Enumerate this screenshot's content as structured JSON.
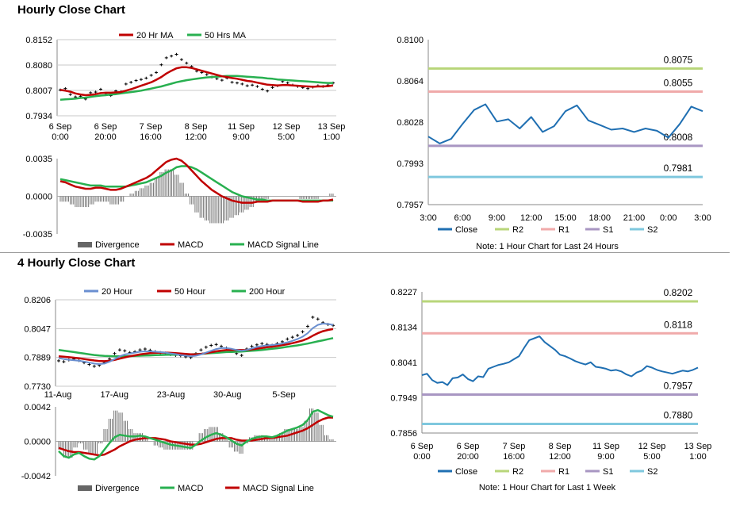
{
  "sections": [
    {
      "title": "Hourly Close Chart"
    },
    {
      "title": "4 Hourly Close Chart"
    }
  ],
  "chart_data": [
    {
      "id": "hourly-price",
      "type": "line",
      "ylim": [
        0.7934,
        0.8152
      ],
      "y_ticks": [
        "0.8152",
        "0.8080",
        "0.8007",
        "0.7934"
      ],
      "x_ticks": [
        [
          "6 Sep",
          "0:00"
        ],
        [
          "6 Sep",
          "20:00"
        ],
        [
          "7 Sep",
          "16:00"
        ],
        [
          "8 Sep",
          "12:00"
        ],
        [
          "11 Sep",
          "9:00"
        ],
        [
          "12 Sep",
          "5:00"
        ],
        [
          "13 Sep",
          "1:00"
        ]
      ],
      "legend": [
        "20 Hr MA",
        "50 Hrs MA"
      ],
      "colors": {
        "price": "#000000",
        "ma_a": "#c00000",
        "ma_b": "#28b050"
      },
      "price": [
        0.8008,
        0.8012,
        0.7995,
        0.7988,
        0.799,
        0.7982,
        0.8,
        0.8002,
        0.801,
        0.7998,
        0.7992,
        0.8005,
        0.8003,
        0.8025,
        0.803,
        0.8035,
        0.8038,
        0.8042,
        0.805,
        0.8058,
        0.808,
        0.81,
        0.8105,
        0.811,
        0.8095,
        0.8085,
        0.8075,
        0.8062,
        0.8058,
        0.8052,
        0.8045,
        0.804,
        0.8036,
        0.8042,
        0.803,
        0.8028,
        0.8025,
        0.802,
        0.8022,
        0.8018,
        0.801,
        0.8005,
        0.8015,
        0.802,
        0.8032,
        0.8028,
        0.8022,
        0.8018,
        0.8015,
        0.8012,
        0.8016,
        0.802,
        0.8018,
        0.8022,
        0.8028
      ],
      "ma_a": [
        0.8008,
        0.8006,
        0.8003,
        0.7998,
        0.7995,
        0.7993,
        0.7994,
        0.7996,
        0.7999,
        0.8,
        0.8,
        0.8001,
        0.8002,
        0.8006,
        0.801,
        0.8015,
        0.802,
        0.8025,
        0.803,
        0.8037,
        0.8045,
        0.8055,
        0.8063,
        0.807,
        0.8073,
        0.8073,
        0.8071,
        0.8067,
        0.8063,
        0.8059,
        0.8055,
        0.8051,
        0.8047,
        0.8045,
        0.8042,
        0.804,
        0.8037,
        0.8034,
        0.8032,
        0.8029,
        0.8026,
        0.8023,
        0.8022,
        0.8021,
        0.8022,
        0.8022,
        0.8021,
        0.802,
        0.8019,
        0.8018,
        0.8017,
        0.8018,
        0.8018,
        0.8019,
        0.8021
      ],
      "ma_b": [
        0.798,
        0.7981,
        0.7982,
        0.7983,
        0.7985,
        0.7986,
        0.7988,
        0.799,
        0.7992,
        0.7993,
        0.7995,
        0.7996,
        0.7998,
        0.8,
        0.8002,
        0.8004,
        0.8006,
        0.8009,
        0.8012,
        0.8015,
        0.8018,
        0.8022,
        0.8026,
        0.803,
        0.8033,
        0.8036,
        0.8038,
        0.804,
        0.8042,
        0.8044,
        0.8045,
        0.8046,
        0.8047,
        0.8048,
        0.8048,
        0.8048,
        0.8047,
        0.8046,
        0.8045,
        0.8044,
        0.8043,
        0.8041,
        0.804,
        0.8038,
        0.8037,
        0.8036,
        0.8035,
        0.8034,
        0.8033,
        0.8032,
        0.8031,
        0.803,
        0.8029,
        0.8028,
        0.8028
      ]
    },
    {
      "id": "hourly-macd",
      "type": "line",
      "ylim": [
        -0.0035,
        0.0035
      ],
      "y_ticks": [
        "0.0035",
        "0.0000",
        "-0.0035"
      ],
      "legend": [
        "Divergence",
        "MACD",
        "MACD Signal Line"
      ],
      "colors": {
        "bars": "#555555",
        "macd": "#c00000",
        "signal": "#28b050"
      },
      "macd": [
        0.0014,
        0.0013,
        0.0011,
        0.0009,
        0.0008,
        0.0007,
        0.0007,
        0.0008,
        0.0008,
        0.0007,
        0.0006,
        0.0006,
        0.0007,
        0.0009,
        0.0011,
        0.0013,
        0.0015,
        0.0017,
        0.002,
        0.0024,
        0.0028,
        0.0032,
        0.0034,
        0.0035,
        0.0033,
        0.0029,
        0.0024,
        0.0019,
        0.0014,
        0.001,
        0.0006,
        0.0003,
        0.0,
        -0.0002,
        -0.0004,
        -0.0005,
        -0.0006,
        -0.0006,
        -0.0006,
        -0.0005,
        -0.0005,
        -0.0005,
        -0.0004,
        -0.0004,
        -0.0004,
        -0.0004,
        -0.0004,
        -0.0004,
        -0.0005,
        -0.0005,
        -0.0005,
        -0.0005,
        -0.0004,
        -0.0004,
        -0.0003
      ],
      "signal": [
        0.0016,
        0.0015,
        0.0014,
        0.0013,
        0.0012,
        0.0011,
        0.001,
        0.001,
        0.001,
        0.0009,
        0.0009,
        0.0009,
        0.0009,
        0.0009,
        0.001,
        0.0011,
        0.0012,
        0.0013,
        0.0015,
        0.0017,
        0.0019,
        0.0022,
        0.0024,
        0.0027,
        0.0028,
        0.0028,
        0.0027,
        0.0025,
        0.0022,
        0.0019,
        0.0016,
        0.0013,
        0.001,
        0.0007,
        0.0004,
        0.0002,
        0.0,
        -0.0001,
        -0.0002,
        -0.0003,
        -0.0003,
        -0.0004,
        -0.0004,
        -0.0004,
        -0.0004,
        -0.0004,
        -0.0004,
        -0.0004,
        -0.0004,
        -0.0004,
        -0.0004,
        -0.0004,
        -0.0004,
        -0.0004,
        -0.0004
      ]
    },
    {
      "id": "hourly-levels",
      "type": "line",
      "ylim": [
        0.7957,
        0.81
      ],
      "y_ticks": [
        "0.8100",
        "0.8064",
        "0.8028",
        "0.7993",
        "0.7957"
      ],
      "x_ticks": [
        "3:00",
        "6:00",
        "9:00",
        "12:00",
        "15:00",
        "18:00",
        "21:00",
        "0:00",
        "3:00"
      ],
      "x": [
        3,
        4,
        5,
        6,
        7,
        8,
        9,
        10,
        11,
        12,
        13,
        14,
        15,
        16,
        17,
        18,
        19,
        20,
        21,
        22,
        23,
        24,
        25,
        26,
        27
      ],
      "close": [
        0.8016,
        0.801,
        0.8014,
        0.8027,
        0.8039,
        0.8044,
        0.8029,
        0.8031,
        0.8023,
        0.8033,
        0.802,
        0.8025,
        0.8038,
        0.8043,
        0.803,
        0.8026,
        0.8022,
        0.8023,
        0.802,
        0.8023,
        0.8021,
        0.8015,
        0.8027,
        0.8042,
        0.8038
      ],
      "levels": [
        {
          "name": "R2",
          "value": 0.8075,
          "label": "0.8075",
          "color": "#b8d67a"
        },
        {
          "name": "R1",
          "value": 0.8055,
          "label": "0.8055",
          "color": "#f0aaaa"
        },
        {
          "name": "S1",
          "value": 0.8008,
          "label": "0.8008",
          "color": "#a896c2"
        },
        {
          "name": "S2",
          "value": 0.7981,
          "label": "0.7981",
          "color": "#7fc8de"
        }
      ],
      "legend": [
        "Close",
        "R2",
        "R1",
        "S1",
        "S2"
      ],
      "close_color": "#1f6fb2",
      "note": "Note: 1 Hour Chart for Last 24 Hours"
    },
    {
      "id": "four-hourly-price",
      "type": "line",
      "ylim": [
        0.773,
        0.8206
      ],
      "y_ticks": [
        "0.8206",
        "0.8047",
        "0.7889",
        "0.7730"
      ],
      "x_ticks": [
        "11-Aug",
        "17-Aug",
        "23-Aug",
        "30-Aug",
        "5-Sep"
      ],
      "legend": [
        "20 Hour",
        "50 Hour",
        "200 Hour"
      ],
      "colors": {
        "price": "#000000",
        "ma20": "#6a8fd0",
        "ma50": "#c00000",
        "ma200": "#28b050"
      },
      "price": [
        0.787,
        0.7865,
        0.7875,
        0.788,
        0.7872,
        0.786,
        0.785,
        0.784,
        0.7845,
        0.786,
        0.788,
        0.791,
        0.793,
        0.7925,
        0.7915,
        0.792,
        0.793,
        0.7935,
        0.7928,
        0.792,
        0.7915,
        0.7912,
        0.7905,
        0.79,
        0.7898,
        0.7892,
        0.7888,
        0.791,
        0.793,
        0.7945,
        0.7955,
        0.796,
        0.795,
        0.794,
        0.7925,
        0.791,
        0.79,
        0.7935,
        0.795,
        0.7958,
        0.7965,
        0.796,
        0.7955,
        0.7965,
        0.7975,
        0.799,
        0.8,
        0.801,
        0.803,
        0.806,
        0.811,
        0.81,
        0.808,
        0.807,
        0.8065
      ],
      "ma20": [
        0.7885,
        0.788,
        0.7876,
        0.7873,
        0.787,
        0.7866,
        0.786,
        0.7855,
        0.7852,
        0.7855,
        0.7865,
        0.788,
        0.7895,
        0.7905,
        0.791,
        0.7915,
        0.792,
        0.7922,
        0.7922,
        0.792,
        0.7918,
        0.7915,
        0.7911,
        0.7907,
        0.7902,
        0.7898,
        0.7895,
        0.7898,
        0.7905,
        0.7915,
        0.7925,
        0.7935,
        0.794,
        0.794,
        0.7936,
        0.793,
        0.7925,
        0.793,
        0.7938,
        0.7946,
        0.7952,
        0.7955,
        0.7957,
        0.796,
        0.7965,
        0.7972,
        0.798,
        0.799,
        0.8003,
        0.8022,
        0.805,
        0.8068,
        0.8075,
        0.8073,
        0.8068
      ],
      "ma50": [
        0.7895,
        0.7893,
        0.789,
        0.7887,
        0.7884,
        0.788,
        0.7876,
        0.7872,
        0.7869,
        0.7868,
        0.787,
        0.7875,
        0.7882,
        0.7889,
        0.7895,
        0.79,
        0.7905,
        0.7909,
        0.7912,
        0.7914,
        0.7915,
        0.7915,
        0.7914,
        0.7912,
        0.791,
        0.7908,
        0.7906,
        0.7906,
        0.7908,
        0.7912,
        0.7917,
        0.7922,
        0.7926,
        0.7929,
        0.793,
        0.793,
        0.7929,
        0.793,
        0.7933,
        0.7937,
        0.7941,
        0.7945,
        0.7948,
        0.7952,
        0.7956,
        0.7961,
        0.7967,
        0.7974,
        0.7982,
        0.7993,
        0.8008,
        0.8022,
        0.8033,
        0.804,
        0.8045
      ],
      "ma200": [
        0.793,
        0.7926,
        0.7922,
        0.7918,
        0.7914,
        0.791,
        0.7906,
        0.7902,
        0.7899,
        0.7897,
        0.7896,
        0.7895,
        0.7895,
        0.7895,
        0.7896,
        0.7897,
        0.7898,
        0.7899,
        0.79,
        0.7901,
        0.7902,
        0.7903,
        0.7904,
        0.7904,
        0.7905,
        0.7905,
        0.7906,
        0.7907,
        0.7908,
        0.791,
        0.7912,
        0.7914,
        0.7916,
        0.7918,
        0.7919,
        0.792,
        0.7921,
        0.7923,
        0.7925,
        0.7927,
        0.793,
        0.7933,
        0.7936,
        0.7939,
        0.7943,
        0.7947,
        0.7951,
        0.7955,
        0.796,
        0.7965,
        0.7971,
        0.7977,
        0.7983,
        0.7989,
        0.7995
      ]
    },
    {
      "id": "four-hourly-macd",
      "type": "line",
      "ylim": [
        -0.0042,
        0.0042
      ],
      "y_ticks": [
        "0.0042",
        "0.0000",
        "-0.0042"
      ],
      "legend": [
        "Divergence",
        "MACD",
        "MACD Signal Line"
      ],
      "colors": {
        "bars": "#555555",
        "macd": "#28b050",
        "signal": "#c00000"
      },
      "macd": [
        -0.0012,
        -0.0018,
        -0.002,
        -0.0016,
        -0.0014,
        -0.0018,
        -0.0021,
        -0.0022,
        -0.0018,
        -0.001,
        -0.0002,
        0.0005,
        0.0008,
        0.0007,
        0.0006,
        0.0006,
        0.0007,
        0.0006,
        0.0004,
        0.0002,
        0.0,
        -0.0002,
        -0.0004,
        -0.0005,
        -0.0006,
        -0.0007,
        -0.0008,
        -0.0004,
        0.0001,
        0.0005,
        0.0008,
        0.001,
        0.0008,
        0.0005,
        0.0001,
        -0.0003,
        -0.0005,
        0.0,
        0.0003,
        0.0005,
        0.0006,
        0.0006,
        0.0005,
        0.0007,
        0.001,
        0.0013,
        0.0015,
        0.0017,
        0.002,
        0.0026,
        0.0036,
        0.0038,
        0.0035,
        0.0032,
        0.003
      ],
      "signal": [
        -0.0008,
        -0.001,
        -0.0012,
        -0.0013,
        -0.0013,
        -0.0014,
        -0.0015,
        -0.0016,
        -0.0017,
        -0.0016,
        -0.0013,
        -0.001,
        -0.0006,
        -0.0003,
        0.0,
        0.0002,
        0.0003,
        0.0004,
        0.0004,
        0.0004,
        0.0003,
        0.0002,
        0.0,
        -0.0001,
        -0.0002,
        -0.0003,
        -0.0004,
        -0.0004,
        -0.0003,
        -0.0001,
        0.0001,
        0.0003,
        0.0004,
        0.0004,
        0.0004,
        0.0002,
        0.0001,
        0.0001,
        0.0001,
        0.0002,
        0.0003,
        0.0004,
        0.0004,
        0.0005,
        0.0006,
        0.0007,
        0.0009,
        0.0011,
        0.0013,
        0.0016,
        0.002,
        0.0024,
        0.0027,
        0.0029,
        0.0029
      ]
    },
    {
      "id": "four-hourly-levels",
      "type": "line",
      "ylim": [
        0.7856,
        0.8227
      ],
      "y_ticks": [
        "0.8227",
        "0.8134",
        "0.8041",
        "0.7949",
        "0.7856"
      ],
      "x_ticks": [
        [
          "6 Sep",
          "0:00"
        ],
        [
          "6 Sep",
          "20:00"
        ],
        [
          "7 Sep",
          "16:00"
        ],
        [
          "8 Sep",
          "12:00"
        ],
        [
          "11 Sep",
          "9:00"
        ],
        [
          "12 Sep",
          "5:00"
        ],
        [
          "13 Sep",
          "1:00"
        ]
      ],
      "close": [
        0.8008,
        0.8012,
        0.7995,
        0.7988,
        0.799,
        0.7982,
        0.8,
        0.8002,
        0.801,
        0.7998,
        0.7992,
        0.8005,
        0.8003,
        0.8025,
        0.803,
        0.8035,
        0.8038,
        0.8042,
        0.805,
        0.8058,
        0.808,
        0.81,
        0.8105,
        0.811,
        0.8095,
        0.8085,
        0.8075,
        0.8062,
        0.8058,
        0.8052,
        0.8045,
        0.804,
        0.8036,
        0.8042,
        0.803,
        0.8028,
        0.8025,
        0.802,
        0.8022,
        0.8018,
        0.801,
        0.8005,
        0.8015,
        0.802,
        0.8032,
        0.8028,
        0.8022,
        0.8018,
        0.8015,
        0.8012,
        0.8016,
        0.802,
        0.8018,
        0.8022,
        0.8028
      ],
      "levels": [
        {
          "name": "R2",
          "value": 0.8202,
          "label": "0.8202",
          "color": "#b8d67a"
        },
        {
          "name": "R1",
          "value": 0.8118,
          "label": "0.8118",
          "color": "#f0aaaa"
        },
        {
          "name": "S1",
          "value": 0.7957,
          "label": "0.7957",
          "color": "#a896c2"
        },
        {
          "name": "S2",
          "value": 0.788,
          "label": "0.7880",
          "color": "#7fc8de"
        }
      ],
      "legend": [
        "Close",
        "R2",
        "R1",
        "S1",
        "S2"
      ],
      "close_color": "#1f6fb2",
      "note": "Note: 1 Hour Chart for Last 1 Week"
    }
  ]
}
